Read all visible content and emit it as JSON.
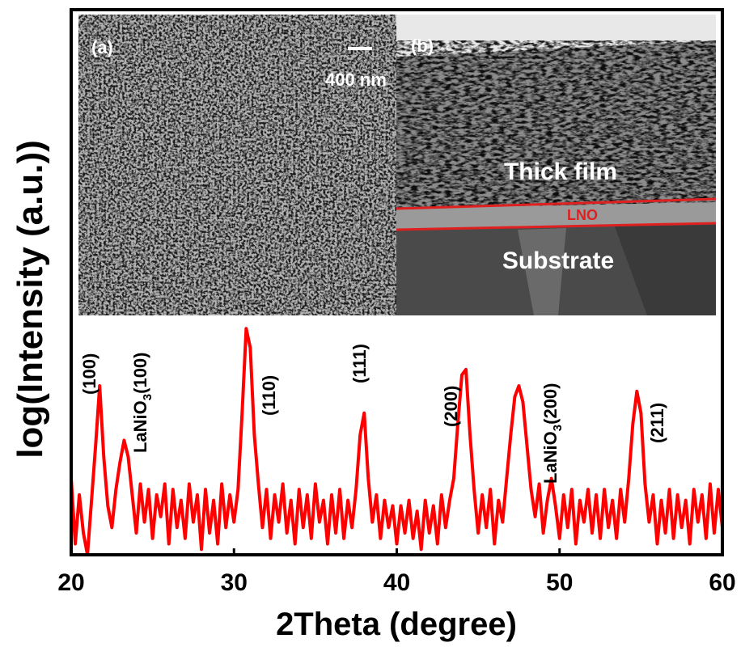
{
  "chart_data": {
    "type": "line",
    "x_label": "2Theta (degree)",
    "y_label": "log(Intensity (a.u.))",
    "color": "#ff0000",
    "xlim": [
      20,
      60
    ],
    "xticks": [
      20,
      30,
      40,
      50,
      60
    ],
    "ylim": [
      0,
      100
    ],
    "x": [
      20,
      20.25,
      20.5,
      20.75,
      21,
      21.25,
      21.5,
      21.75,
      22,
      22.25,
      22.5,
      22.75,
      23,
      23.25,
      23.5,
      23.75,
      24,
      24.25,
      24.5,
      24.75,
      25,
      25.25,
      25.5,
      25.75,
      26,
      26.25,
      26.5,
      26.75,
      27,
      27.25,
      27.5,
      27.75,
      28,
      28.25,
      28.5,
      28.75,
      29,
      29.25,
      29.5,
      29.75,
      30,
      30.25,
      30.5,
      30.75,
      31,
      31.25,
      31.5,
      31.75,
      32,
      32.25,
      32.5,
      32.75,
      33,
      33.25,
      33.5,
      33.75,
      34,
      34.25,
      34.5,
      34.75,
      35,
      35.25,
      35.5,
      35.75,
      36,
      36.25,
      36.5,
      36.75,
      37,
      37.25,
      37.5,
      37.75,
      38,
      38.25,
      38.5,
      38.75,
      39,
      39.25,
      39.5,
      39.75,
      40,
      40.25,
      40.5,
      40.75,
      41,
      41.25,
      41.5,
      41.75,
      42,
      42.25,
      42.5,
      42.75,
      43,
      43.25,
      43.5,
      43.75,
      44,
      44.25,
      44.5,
      44.75,
      45,
      45.25,
      45.5,
      45.75,
      46,
      46.25,
      46.5,
      46.75,
      47,
      47.25,
      47.5,
      47.75,
      48,
      48.25,
      48.5,
      48.75,
      49,
      49.25,
      49.5,
      49.75,
      50,
      50.25,
      50.5,
      50.75,
      51,
      51.25,
      51.5,
      51.75,
      52,
      52.25,
      52.5,
      52.75,
      53,
      53.25,
      53.5,
      53.75,
      54,
      54.25,
      54.5,
      54.75,
      55,
      55.25,
      55.5,
      55.75,
      56,
      56.25,
      56.5,
      56.75,
      57,
      57.25,
      57.5,
      57.75,
      58,
      58.25,
      58.5,
      58.75,
      59,
      59.25,
      59.5,
      59.75,
      60
    ],
    "values": [
      14,
      2,
      11,
      4,
      0,
      10,
      20,
      31,
      18,
      9,
      5,
      12,
      17,
      21,
      18,
      11,
      4,
      13,
      6,
      12,
      3,
      11,
      7,
      13,
      2,
      12,
      5,
      10,
      3,
      13,
      6,
      11,
      1,
      12,
      4,
      10,
      2,
      13,
      5,
      11,
      6,
      12,
      26,
      41.5,
      38,
      22,
      13,
      5,
      12,
      3,
      11,
      6,
      13,
      4,
      10,
      2,
      12,
      5,
      11,
      3,
      13,
      6,
      10,
      2,
      11,
      4,
      12,
      3,
      10,
      5,
      12,
      22,
      26,
      14,
      6,
      11,
      3,
      10,
      5,
      9,
      2,
      9,
      4,
      10,
      3,
      8,
      1,
      10,
      4,
      9,
      2,
      11,
      5,
      10,
      14,
      24,
      33,
      34,
      22,
      12,
      4,
      11,
      5,
      12,
      2,
      10,
      6,
      14,
      22,
      29,
      31,
      28,
      20,
      12,
      7,
      13,
      4,
      10,
      14,
      9,
      3,
      11,
      5,
      12,
      2,
      10,
      6,
      12,
      4,
      11,
      3,
      12,
      5,
      10,
      3,
      12,
      6,
      14,
      24,
      30,
      26,
      13,
      6,
      11,
      2,
      10,
      4,
      12,
      3,
      11,
      5,
      10,
      2,
      12,
      6,
      11,
      3,
      13,
      4,
      12,
      5
    ],
    "annotations": [
      [
        "(100)"
      ],
      [
        "LaNiO",
        "3",
        "(100)"
      ],
      [
        "(110)"
      ],
      [
        "(111)"
      ],
      [
        "(200)"
      ],
      [
        "LaNiO",
        "3",
        "(200)"
      ],
      [
        "(211)"
      ]
    ]
  },
  "insets": [
    {
      "label": "(a)",
      "scale_bar": "400 nm"
    },
    {
      "label": "(b)",
      "layers": [
        "Thick film",
        "LNO",
        "Substrate"
      ]
    }
  ]
}
